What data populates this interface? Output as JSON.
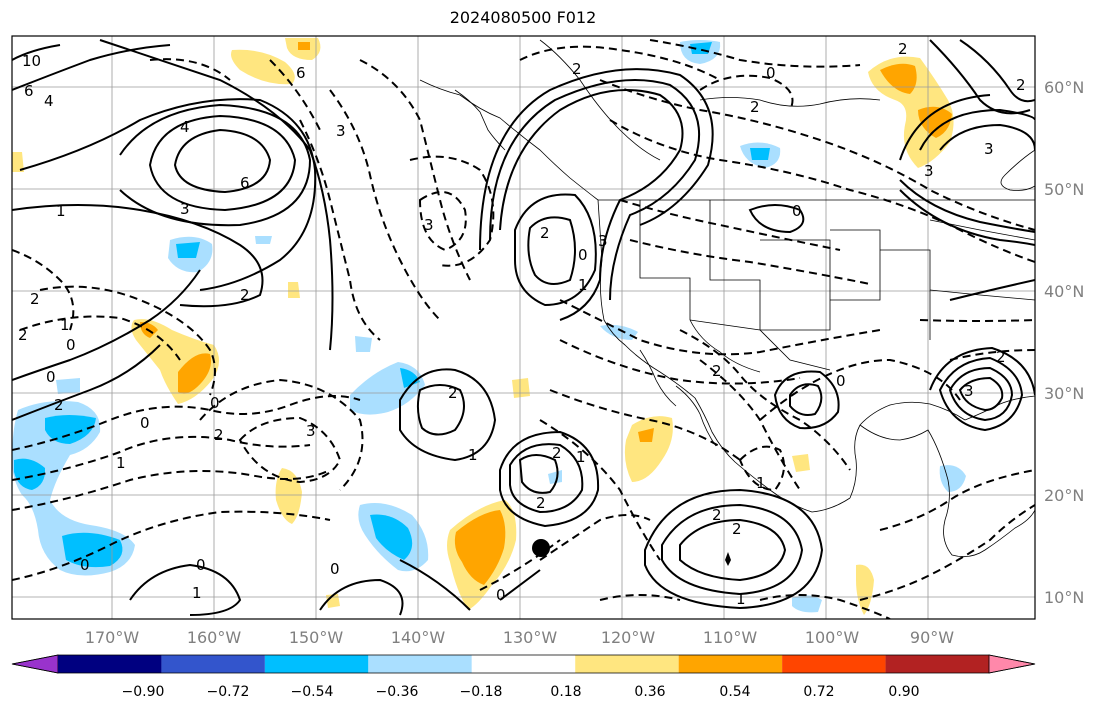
{
  "title": "2024080500 F012",
  "lat_labels": [
    "60°N",
    "50°N",
    "40°N",
    "30°N",
    "20°N",
    "10°N"
  ],
  "lon_labels": [
    "170°W",
    "160°W",
    "150°W",
    "140°W",
    "130°W",
    "120°W",
    "110°W",
    "100°W",
    "90°W"
  ],
  "colorbar": {
    "colors": [
      "#9933cc",
      "#000080",
      "#3355cc",
      "#00bfff",
      "#aadfff",
      "#ffffff",
      "#ffe680",
      "#ffa500",
      "#ff4500",
      "#b22222",
      "#ff88aa"
    ],
    "tick_labels": [
      "−0.90",
      "−0.72",
      "−0.54",
      "−0.36",
      "−0.18",
      "0.18",
      "0.36",
      "0.54",
      "0.72",
      "0.90"
    ]
  },
  "contour_labels": [
    "10",
    "6",
    "4",
    "6",
    "3",
    "4",
    "6",
    "1",
    "3",
    "2",
    "2",
    "1",
    "0",
    "2",
    "0",
    "3",
    "0",
    "2",
    "2",
    "0",
    "3",
    "2",
    "2",
    "2",
    "1",
    "1",
    "0",
    "2",
    "1",
    "0",
    "2",
    "1",
    "0",
    "0",
    "0",
    "1",
    "3",
    "2",
    "2",
    "2",
    "3",
    "3",
    "0",
    "2",
    "1",
    "0",
    "0",
    "1",
    "2",
    "2",
    "2",
    "3"
  ],
  "storm_marker": "tropical-system-dot",
  "colors": {
    "positive_light": "#ffe680",
    "positive_mid": "#ffa500",
    "negative_light": "#aadfff",
    "negative_mid": "#00bfff",
    "contour": "#000000",
    "grid": "#9a9a9a"
  }
}
